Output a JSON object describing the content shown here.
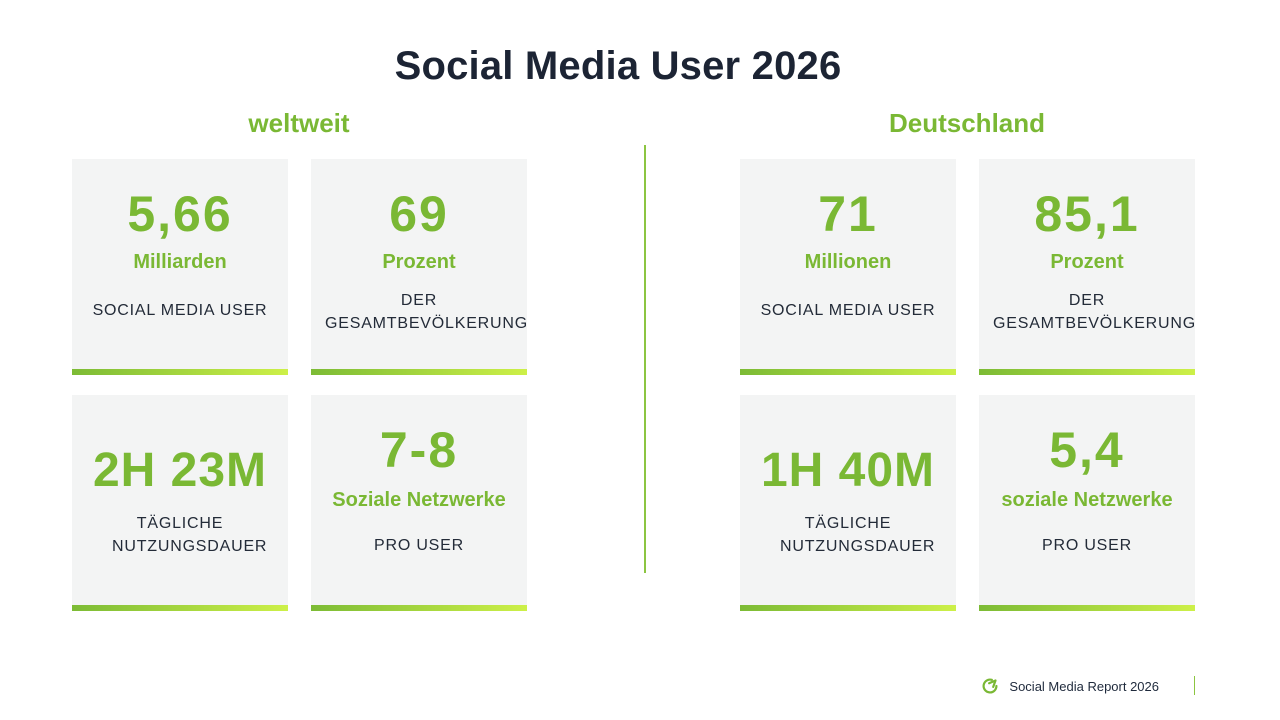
{
  "title": "Social Media User 2026",
  "sections": {
    "left": "weltweit",
    "right": "Deutschland"
  },
  "cards": [
    {
      "value": "5,66",
      "unit": "Milliarden",
      "desc": "SOCIAL MEDIA USER"
    },
    {
      "value": "69",
      "unit": "Prozent",
      "desc": "DER GESAMTBEVÖLKERUNG"
    },
    {
      "value": "71",
      "unit": "Millionen",
      "desc": "SOCIAL MEDIA USER"
    },
    {
      "value": "85,1",
      "unit": "Prozent",
      "desc": "DER GESAMTBEVÖLKERUNG"
    },
    {
      "value": "2H 23M",
      "desc": "TÄGLICHE NUTZUNGSDAUER"
    },
    {
      "value": "7-8",
      "unit": "Soziale Netzwerke",
      "desc": "PRO USER"
    },
    {
      "value": "1H 40M",
      "desc": "TÄGLICHE NUTZUNGSDAUER"
    },
    {
      "value": "5,4",
      "unit": "soziale Netzwerke",
      "desc": "PRO USER"
    }
  ],
  "footer": {
    "label": "Social Media Report 2026",
    "icon": "refresh-arrow-icon"
  },
  "colors": {
    "accent": "#7ab834",
    "accent_light": "#cdf048",
    "title": "#1c2434",
    "card_bg": "#f3f4f4"
  }
}
